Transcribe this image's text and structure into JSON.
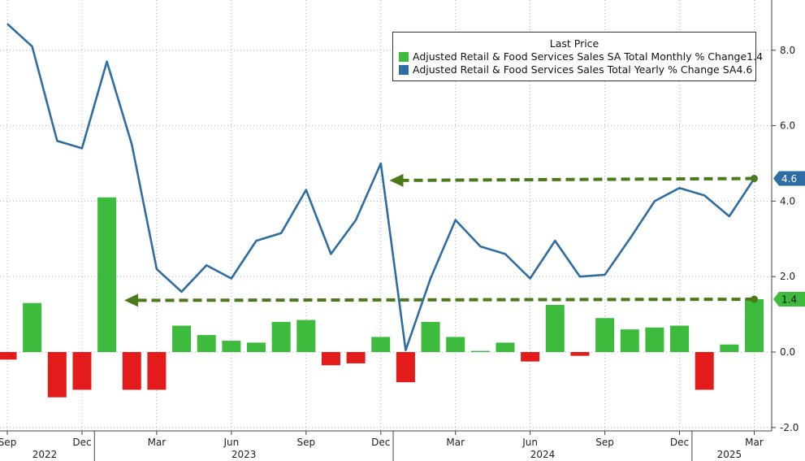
{
  "colors": {
    "line": "#2e6da4",
    "bar_pos": "#3cbb3c",
    "bar_neg": "#e31b1b",
    "arrow": "#4a7a1a",
    "value_box_line": "#2e6da4",
    "value_box_bar": "#3cbb3c",
    "grid": "#b8b8b8"
  },
  "chart_data": {
    "type": "bar+line",
    "legend": {
      "title": "Last Price",
      "placement": "top-right",
      "entries": [
        {
          "label": "Adjusted Retail & Food Services Sales SA Total Monthly % Change",
          "value": "1.4",
          "color": "#3cbb3c"
        },
        {
          "label": "Adjusted Retail & Food Services Sales Total Yearly % Change SA",
          "value": "4.6",
          "color": "#2e6da4"
        }
      ]
    },
    "x": [
      "2022-09",
      "2022-10",
      "2022-11",
      "2022-12",
      "2023-01",
      "2023-02",
      "2023-03",
      "2023-04",
      "2023-05",
      "2023-06",
      "2023-07",
      "2023-08",
      "2023-09",
      "2023-10",
      "2023-11",
      "2023-12",
      "2024-01",
      "2024-02",
      "2024-03",
      "2024-04",
      "2024-05",
      "2024-06",
      "2024-07",
      "2024-08",
      "2024-09",
      "2024-10",
      "2024-11",
      "2024-12",
      "2025-01",
      "2025-02",
      "2025-03"
    ],
    "series": [
      {
        "name": "Adjusted Retail & Food Services Sales SA Total Monthly % Change",
        "kind": "bar",
        "values": [
          -0.2,
          1.3,
          -1.2,
          -1.0,
          4.1,
          -1.0,
          -1.0,
          0.7,
          0.45,
          0.3,
          0.25,
          0.8,
          0.85,
          -0.35,
          -0.3,
          0.4,
          -0.8,
          0.8,
          0.4,
          0.03,
          0.25,
          -0.25,
          1.25,
          -0.1,
          0.9,
          0.6,
          0.65,
          0.7,
          -1.0,
          0.2,
          1.4
        ]
      },
      {
        "name": "Adjusted Retail & Food Services Sales Total Yearly % Change SA",
        "kind": "line",
        "values": [
          8.7,
          8.1,
          5.6,
          5.4,
          7.7,
          5.5,
          2.2,
          1.6,
          2.3,
          1.95,
          2.95,
          3.15,
          4.3,
          2.6,
          3.5,
          5.0,
          0.05,
          1.95,
          3.5,
          2.8,
          2.6,
          1.95,
          2.95,
          2.0,
          2.05,
          3.0,
          4.0,
          4.35,
          4.15,
          3.6,
          4.6
        ]
      }
    ],
    "yticks": [
      -2,
      0,
      2,
      4,
      6,
      8
    ],
    "ytick_labels": [
      "-2.0",
      "0.0",
      "2.0",
      "4.0",
      "6.0",
      "8.0"
    ],
    "ylim": [
      -2.0,
      9.4
    ],
    "grid": true,
    "y_axis_side": "right",
    "month_ticks": [
      {
        "label": "Sep",
        "index": 0
      },
      {
        "label": "Dec",
        "index": 3
      },
      {
        "label": "Mar",
        "index": 6
      },
      {
        "label": "Jun",
        "index": 9
      },
      {
        "label": "Sep",
        "index": 12
      },
      {
        "label": "Dec",
        "index": 15
      },
      {
        "label": "Mar",
        "index": 18
      },
      {
        "label": "Jun",
        "index": 21
      },
      {
        "label": "Sep",
        "index": 24
      },
      {
        "label": "Dec",
        "index": 27
      },
      {
        "label": "Mar",
        "index": 30
      }
    ],
    "year_labels": [
      {
        "label": "2022",
        "center_index": 1.5
      },
      {
        "label": "2023",
        "center_index": 9.5
      },
      {
        "label": "2024",
        "center_index": 21.5
      },
      {
        "label": "2025",
        "center_index": 29.0
      }
    ],
    "year_boundaries": [
      3.5,
      15.5,
      27.5
    ],
    "last_value_labels": [
      {
        "label": "4.6",
        "value": 4.6,
        "series": "line"
      },
      {
        "label": "1.4",
        "value": 1.4,
        "series": "bar"
      }
    ],
    "annotations": [
      {
        "kind": "dashed-arrow",
        "series": "line",
        "from_index": 30,
        "to_index": 15.35,
        "value": 4.6,
        "arrow_value": 4.55
      },
      {
        "kind": "dashed-arrow",
        "series": "bar",
        "from_index": 30,
        "to_index": 4.7,
        "value": 1.4,
        "arrow_value": 1.37
      }
    ]
  }
}
